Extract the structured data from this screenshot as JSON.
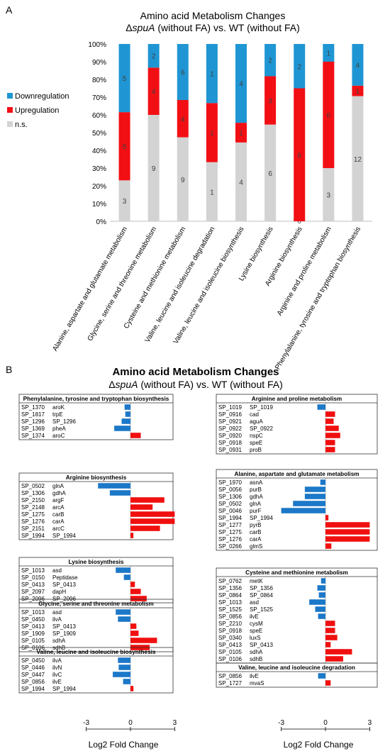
{
  "colors": {
    "downregulation": "#1F96D3",
    "upregulation": "#F20F14",
    "ns": "#D3D3D3",
    "blue_bar": "#1C78C8",
    "red_bar": "#F00F0F"
  },
  "panel_a": {
    "letter": "A",
    "title_line1": "Amino acid Metabolism Changes",
    "title_line2_prefix": "Δ",
    "title_line2_italic": "spuA",
    "title_line2_suffix": " (without FA) vs. WT (without FA)"
  },
  "panel_b": {
    "letter": "B",
    "title_line1": "Amino acid Metabolism Changes",
    "title_line2_prefix": "Δ",
    "title_line2_italic": "spuA",
    "title_line2_suffix": " (without FA) vs. WT (without FA)",
    "xlabel": "Log2 Fold Change",
    "xticks": [
      -3,
      0,
      3
    ]
  },
  "chart_data": [
    {
      "type": "bar",
      "stacked": "percent",
      "categories": [
        "Alanine, aspartate and glutamate metabolism",
        "Glycine, serine and threonine metabolism",
        "Cysteine and methionine metabolism",
        "Valine, leucine and isoleucine degradation",
        "Valine, leucine and isoleucine biosynthesis",
        "Lysine biosynthesis",
        "Arginine biosynthesis",
        "Arginine and proline metabolism",
        "Phenylalanine, tyrosine and tryptophan biosynthesis"
      ],
      "series": [
        {
          "name": "n.s.",
          "values": [
            3,
            9,
            9,
            1,
            4,
            6,
            0,
            3,
            12
          ]
        },
        {
          "name": "Upregulation",
          "values": [
            5,
            4,
            4,
            1,
            1,
            3,
            6,
            6,
            1
          ]
        },
        {
          "name": "Downregulation",
          "values": [
            5,
            2,
            6,
            1,
            4,
            2,
            2,
            1,
            4
          ]
        }
      ],
      "ylim": [
        0,
        100
      ],
      "yticks": [
        "0%",
        "10%",
        "20%",
        "30%",
        "40%",
        "50%",
        "60%",
        "70%",
        "80%",
        "90%",
        "100%"
      ],
      "legend": "left",
      "grid": false
    },
    {
      "type": "bar",
      "orientation": "horizontal",
      "xlim": [
        -3,
        3
      ],
      "xlabel": "Log2 Fold Change",
      "groups": [
        {
          "title": "Phenylalanine, tyrosine and tryptophan biosynthesis",
          "rows": [
            {
              "id": "SP_1370",
              "gene": "aroK",
              "value": -0.4
            },
            {
              "id": "SP_1817",
              "gene": "trpE",
              "value": -0.35
            },
            {
              "id": "SP_1296",
              "gene": "SP_1296",
              "value": -0.6
            },
            {
              "id": "SP_1369",
              "gene": "pheA",
              "value": -1.1
            },
            {
              "id": "SP_1374",
              "gene": "aroC",
              "value": 0.7
            }
          ]
        },
        {
          "title": "Arginine biosynthesis",
          "rows": [
            {
              "id": "SP_0502",
              "gene": "glnA",
              "value": -2.2
            },
            {
              "id": "SP_1306",
              "gene": "gdhA",
              "value": -1.4
            },
            {
              "id": "SP_2150",
              "gene": "argF",
              "value": 2.3
            },
            {
              "id": "SP_2148",
              "gene": "arcA",
              "value": 1.5
            },
            {
              "id": "SP_1275",
              "gene": "carB",
              "value": 3.0
            },
            {
              "id": "SP_1276",
              "gene": "carA",
              "value": 3.0
            },
            {
              "id": "SP_2151",
              "gene": "arcC",
              "value": 2.0
            },
            {
              "id": "SP_1994",
              "gene": "SP_1994",
              "value": 0.2
            }
          ]
        },
        {
          "title": "Lysine biosynthesis",
          "rows": [
            {
              "id": "SP_1013",
              "gene": "asd",
              "value": -1.0
            },
            {
              "id": "SP_0150",
              "gene": "Peptidase",
              "value": -0.45
            },
            {
              "id": "SP_0413",
              "gene": "SP_0413",
              "value": 0.3
            },
            {
              "id": "SP_2097",
              "gene": "dapH",
              "value": 0.7
            },
            {
              "id": "SP_2096",
              "gene": "SP_2096",
              "value": 1.1
            }
          ]
        },
        {
          "title": "Glycine, serine and threonine metabolism",
          "rows": [
            {
              "id": "SP_1013",
              "gene": "asd",
              "value": -1.0
            },
            {
              "id": "SP_0450",
              "gene": "ilvA",
              "value": -0.85
            },
            {
              "id": "SP_0413",
              "gene": "SP_0413",
              "value": 0.4
            },
            {
              "id": "SP_1909",
              "gene": "SP_1909",
              "value": 0.55
            },
            {
              "id": "SP_0105",
              "gene": "sdhA",
              "value": 1.8
            },
            {
              "id": "SP_0106",
              "gene": "sdhB",
              "value": 1.3
            }
          ]
        },
        {
          "title": "Valine, leucine and isoleucine biosynthesis",
          "rows": [
            {
              "id": "SP_0450",
              "gene": "ilvA",
              "value": -0.85
            },
            {
              "id": "SP_0446",
              "gene": "ilvN",
              "value": -0.8
            },
            {
              "id": "SP_0447",
              "gene": "ilvC",
              "value": -1.2
            },
            {
              "id": "SP_0856",
              "gene": "ilvE",
              "value": -0.5
            },
            {
              "id": "SP_1994",
              "gene": "SP_1994",
              "value": 0.2
            }
          ]
        },
        {
          "title": "Arginine and proline metabolism",
          "rows": [
            {
              "id": "SP_1019",
              "gene": "SP_1019",
              "value": -0.55
            },
            {
              "id": "SP_0916",
              "gene": "cad",
              "value": 0.65
            },
            {
              "id": "SP_0921",
              "gene": "aguA",
              "value": 0.55
            },
            {
              "id": "SP_0922",
              "gene": "SP_0922",
              "value": 0.9
            },
            {
              "id": "SP_0920",
              "gene": "nspC",
              "value": 1.0
            },
            {
              "id": "SP_0918",
              "gene": "speE",
              "value": 0.65
            },
            {
              "id": "SP_0931",
              "gene": "proB",
              "value": 0.65
            }
          ]
        },
        {
          "title": "Alanine, aspartate and glutamate metabolism",
          "rows": [
            {
              "id": "SP_1970",
              "gene": "asnA",
              "value": -0.35
            },
            {
              "id": "SP_0056",
              "gene": "purB",
              "value": -1.4
            },
            {
              "id": "SP_1306",
              "gene": "gdhA",
              "value": -1.4
            },
            {
              "id": "SP_0502",
              "gene": "glnA",
              "value": -2.2
            },
            {
              "id": "SP_0046",
              "gene": "purF",
              "value": -3.0
            },
            {
              "id": "SP_1994",
              "gene": "SP_1994",
              "value": 0.2
            },
            {
              "id": "SP_1277",
              "gene": "pyrB",
              "value": 3.0
            },
            {
              "id": "SP_1275",
              "gene": "carB",
              "value": 3.0
            },
            {
              "id": "SP_1276",
              "gene": "carA",
              "value": 3.0
            },
            {
              "id": "SP_0266",
              "gene": "glmS",
              "value": 0.4
            }
          ]
        },
        {
          "title": "Cysteine and methionine metabolism",
          "rows": [
            {
              "id": "SP_0762",
              "gene": "metK",
              "value": -0.3
            },
            {
              "id": "SP_1356",
              "gene": "SP_1356",
              "value": -0.55
            },
            {
              "id": "SP_0864",
              "gene": "SP_0864",
              "value": -0.45
            },
            {
              "id": "SP_1013",
              "gene": "asd",
              "value": -1.1
            },
            {
              "id": "SP_1525",
              "gene": "SP_1525",
              "value": -0.7
            },
            {
              "id": "SP_0856",
              "gene": "ilvE",
              "value": -0.5
            },
            {
              "id": "SP_2210",
              "gene": "cysM",
              "value": 0.65
            },
            {
              "id": "SP_0918",
              "gene": "speE",
              "value": 0.65
            },
            {
              "id": "SP_0340",
              "gene": "luxS",
              "value": 0.8
            },
            {
              "id": "SP_0413",
              "gene": "SP_0413",
              "value": 0.35
            },
            {
              "id": "SP_0105",
              "gene": "sdhA",
              "value": 1.8
            },
            {
              "id": "SP_0106",
              "gene": "sdhB",
              "value": 1.2
            }
          ]
        },
        {
          "title": "Valine, leucine and isoleucine degradation",
          "rows": [
            {
              "id": "SP_0856",
              "gene": "ilvE",
              "value": -0.5
            },
            {
              "id": "SP_1727",
              "gene": "mvaS",
              "value": 0.35
            }
          ]
        }
      ]
    }
  ]
}
